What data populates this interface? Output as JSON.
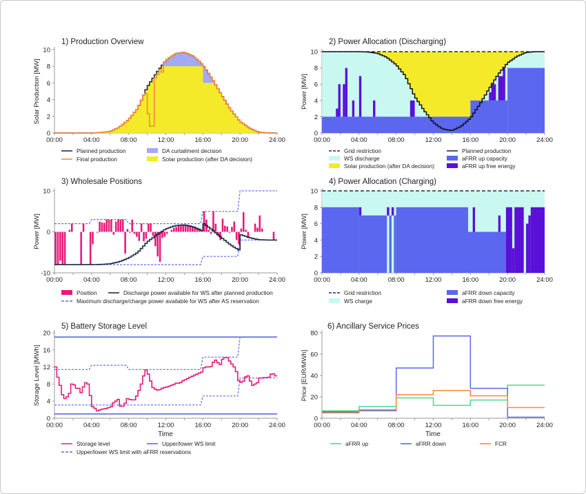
{
  "chart_data": [
    {
      "type": "area",
      "title": "1) Production Overview",
      "ylabel": "Solar Production [MW]",
      "xlabel": "",
      "ylim": [
        0,
        10
      ],
      "yticks": [
        0,
        2,
        4,
        6,
        8,
        10
      ],
      "xticks": [
        "00:00",
        "04:00",
        "08:00",
        "12:00",
        "16:00",
        "20:00",
        "24:00"
      ],
      "grid": false,
      "colors": {
        "planned": "#1f2a48",
        "final": "#f58a3a",
        "curtail": "#a3a9f3",
        "solar": "#f5ea2a"
      },
      "planned_production_hourly": [
        0,
        0,
        0,
        0,
        0,
        0.05,
        0.2,
        0.7,
        1.6,
        3.0,
        5.5,
        7.2,
        8.7,
        9.5,
        9.7,
        9.2,
        8.2,
        6.5,
        4.6,
        2.8,
        1.4,
        0.6,
        0.1,
        0,
        0
      ],
      "da_curtailment_cap": [
        [
          "11:30",
          "16:00",
          8
        ],
        [
          "16:00",
          "17:15",
          6
        ]
      ],
      "final_production_deviations": [
        [
          "09:45",
          4.7
        ],
        [
          "10:00",
          2.3
        ],
        [
          "10:15",
          0.8
        ],
        [
          "10:30",
          0.8
        ],
        [
          "10:45",
          6.6
        ],
        [
          "11:00",
          7.0
        ],
        [
          "11:15",
          7.6
        ],
        [
          "11:30",
          7.3
        ]
      ],
      "legend": [
        {
          "label": "Planned production",
          "kind": "line",
          "color": "#1f2a48"
        },
        {
          "label": "Final production",
          "kind": "line",
          "color": "#f58a3a"
        },
        {
          "label": "DA curtailment decision",
          "kind": "patch",
          "color": "#a3a9f3"
        },
        {
          "label": "Solar production (after DA decision)",
          "kind": "patch",
          "color": "#f5ea2a"
        }
      ]
    },
    {
      "type": "area",
      "title": "2) Power Allocation (Discharging)",
      "ylabel": "Power [MW]",
      "xlabel": "",
      "ylim": [
        0,
        10
      ],
      "yticks": [
        0,
        2,
        4,
        6,
        8,
        10
      ],
      "xticks": [
        "00:00",
        "04:00",
        "08:00",
        "12:00",
        "16:00",
        "20:00",
        "24:00"
      ],
      "grid_restriction": 10,
      "afrr_up_capacity": [
        [
          "00:00",
          "16:00",
          2
        ],
        [
          "16:00",
          "20:00",
          4
        ],
        [
          "20:00",
          "24:00",
          8
        ]
      ],
      "afrr_up_free_energy": [
        [
          "01:30",
          "01:45",
          2,
          3
        ],
        [
          "01:45",
          "02:00",
          2,
          6
        ],
        [
          "02:15",
          "02:30",
          2,
          6
        ],
        [
          "02:30",
          "02:45",
          2,
          8
        ],
        [
          "03:15",
          "03:30",
          2,
          4
        ],
        [
          "04:00",
          "04:15",
          2,
          7
        ],
        [
          "05:30",
          "05:45",
          2,
          4
        ],
        [
          "09:30",
          "10:00",
          2,
          4
        ],
        [
          "18:00",
          "18:15",
          4,
          5
        ],
        [
          "18:15",
          "18:45",
          4,
          6
        ],
        [
          "19:00",
          "19:30",
          4,
          7
        ],
        [
          "19:30",
          "19:45",
          4,
          8
        ]
      ],
      "legend": [
        {
          "label": "Grid restriction",
          "kind": "dash",
          "color": "#1f2a48"
        },
        {
          "label": "WS discharge",
          "kind": "patch",
          "color": "#c9f8f0"
        },
        {
          "label": "Solar production (after DA decision)",
          "kind": "patch",
          "color": "#f5ea2a"
        },
        {
          "label": "Planned production",
          "kind": "line",
          "color": "#1f2a48"
        },
        {
          "label": "aFRR up capacity",
          "kind": "patch",
          "color": "#5a67ee"
        },
        {
          "label": "aFRR up free energy",
          "kind": "patch",
          "color": "#5a10d8"
        }
      ]
    },
    {
      "type": "bar",
      "title": "3) Wholesale Positions",
      "ylabel": "Power [MW]",
      "xlabel": "",
      "ylim": [
        -10,
        10
      ],
      "yticks": [
        -10,
        0,
        10
      ],
      "xticks": [
        "00:00",
        "04:00",
        "08:00",
        "12:00",
        "16:00",
        "20:00",
        "24:00"
      ],
      "resolution_minutes": 15,
      "position": [
        -8,
        -8,
        -7,
        -8,
        -8,
        0,
        0.5,
        2,
        0,
        0,
        0,
        -8,
        2,
        0,
        0,
        -8,
        -3,
        0,
        -0.2,
        2.5,
        2.3,
        2.2,
        3,
        3,
        3,
        -0.7,
        2.5,
        3,
        3,
        3,
        -5.3,
        0.7,
        -0.2,
        3,
        -0.5,
        -1.2,
        -2.2,
        2,
        -2.3,
        -1.7,
        2,
        2,
        -1,
        -3.5,
        -6,
        -7.3,
        -1.5,
        -1.2,
        -0.5,
        0,
        0.5,
        1,
        1.2,
        1.5,
        1.7,
        1.8,
        1.8,
        1.7,
        1.6,
        1.4,
        1.2,
        1,
        0.8,
        0.5,
        5,
        3,
        0.5,
        -0.5,
        5,
        2,
        -1,
        -2,
        3.2,
        1.5,
        1.3,
        -0.2,
        1.2,
        2.5,
        -2,
        -3,
        0.8,
        4.8,
        0.5,
        -1.5,
        0,
        0,
        2,
        1,
        4,
        0.8,
        0,
        0,
        0,
        0,
        -2,
        0
      ],
      "max_ws_discharge": [
        [
          "00:00",
          "03:45",
          2
        ],
        [
          "04:00",
          "07:45",
          3
        ],
        [
          "08:00",
          "15:45",
          2
        ],
        [
          "16:00",
          "19:45",
          5
        ],
        [
          "20:00",
          "24:00",
          10
        ]
      ],
      "max_ws_charge": [
        [
          "00:00",
          "15:45",
          -8
        ],
        [
          "16:00",
          "19:45",
          -6
        ],
        [
          "20:00",
          "24:00",
          -2
        ]
      ],
      "legend": [
        {
          "label": "Position",
          "kind": "patch",
          "color": "#e8197a"
        },
        {
          "label": "Discharge power available for WS after planned production",
          "kind": "line",
          "color": "#1f2a48"
        },
        {
          "label": "Maximum discharge/charge power available for WS after AS reservation",
          "kind": "dash",
          "color": "#5a67ee"
        }
      ]
    },
    {
      "type": "area",
      "title": "4) Power Allocation (Charging)",
      "ylabel": "Power [MW]",
      "xlabel": "",
      "ylim": [
        0,
        10
      ],
      "yticks": [
        0,
        2,
        4,
        6,
        8,
        10
      ],
      "xticks": [
        "00:00",
        "04:00",
        "08:00",
        "12:00",
        "16:00",
        "20:00",
        "24:00"
      ],
      "grid_restriction": 10,
      "afrr_down_capacity": [
        [
          "00:00",
          "04:00",
          8
        ],
        [
          "04:00",
          "07:00",
          7
        ],
        [
          "07:15",
          "07:30",
          7
        ],
        [
          "07:45",
          "08:00",
          7
        ],
        [
          "08:00",
          "15:45",
          8
        ],
        [
          "15:45",
          "19:50",
          5
        ]
      ],
      "afrr_down_free_energy": [
        [
          "04:00",
          "04:15",
          7,
          8
        ],
        [
          "07:00",
          "07:15",
          7,
          8
        ],
        [
          "07:30",
          "07:45",
          7,
          8
        ],
        [
          "16:15",
          "16:30",
          5,
          8
        ],
        [
          "19:00",
          "19:15",
          5,
          7
        ],
        [
          "19:50",
          "20:30",
          0,
          8
        ],
        [
          "20:30",
          "20:45",
          0,
          3
        ],
        [
          "20:45",
          "21:45",
          0,
          8
        ],
        [
          "22:00",
          "22:15",
          0,
          6
        ],
        [
          "22:15",
          "22:30",
          0,
          7
        ],
        [
          "22:30",
          "24:00",
          0,
          8
        ]
      ],
      "legend": [
        {
          "label": "Grid restriction",
          "kind": "dash",
          "color": "#1f2a48"
        },
        {
          "label": "WS charge",
          "kind": "patch",
          "color": "#c9f8f0"
        },
        {
          "label": "aFRR down capacity",
          "kind": "patch",
          "color": "#5a67ee"
        },
        {
          "label": "aFRR down free energy",
          "kind": "patch",
          "color": "#5a10d8"
        }
      ]
    },
    {
      "type": "line",
      "title": "5) Battery Storage Level",
      "ylabel": "Storage Level [MWh]",
      "xlabel": "Time",
      "ylim": [
        0,
        20
      ],
      "yticks": [
        0,
        4,
        8,
        12,
        16,
        20
      ],
      "xticks": [
        "00:00",
        "04:00",
        "08:00",
        "12:00",
        "16:00",
        "20:00",
        "24:00"
      ],
      "resolution_minutes": 15,
      "storage_level": [
        12,
        9.6,
        7.7,
        5.5,
        4.6,
        5,
        5.8,
        8,
        7.8,
        7,
        7,
        6,
        7.3,
        8.3,
        8,
        5.3,
        2.7,
        2.3,
        1.7,
        1.9,
        2.1,
        2.2,
        2.3,
        2.5,
        2.7,
        3.6,
        4,
        4.4,
        2.8,
        2.8,
        3.5,
        4.6,
        4.4,
        4.3,
        4.3,
        5.2,
        6.5,
        8,
        9.9,
        11.3,
        10.3,
        8.7,
        7.2,
        6.8,
        6.6,
        6.7,
        7,
        7.2,
        7.3,
        7.5,
        7.7,
        7.9,
        8.2,
        8.2,
        8.4,
        8.8,
        9,
        9.3,
        9.6,
        9.8,
        10.1,
        10.3,
        10.6,
        10.8,
        11.8,
        12,
        12,
        12.1,
        13.1,
        13.6,
        13,
        12.6,
        13.8,
        14.2,
        14.2,
        13.4,
        12.7,
        12,
        10.9,
        8.8,
        8.4,
        8.7,
        9.7,
        9.9,
        8.7,
        7.7,
        8,
        8.3,
        9.4,
        9.4,
        9.5,
        9.5,
        9.6,
        10.3,
        10.4,
        9.9
      ],
      "ws_limits": [
        19,
        1
      ],
      "afrr_upper_limit": [
        [
          "00:00",
          "03:45",
          11.4
        ],
        [
          "04:00",
          "07:45",
          12.4
        ],
        [
          "08:00",
          "15:45",
          11.4
        ],
        [
          "16:00",
          "19:45",
          14.3
        ],
        [
          "20:00",
          "24:00",
          19
        ]
      ],
      "afrr_lower_limit": [
        [
          "00:00",
          "15:45",
          3.1
        ],
        [
          "16:00",
          "19:45",
          5.2
        ],
        [
          "20:00",
          "24:00",
          9.4
        ]
      ],
      "legend": [
        {
          "label": "Storage level",
          "kind": "line",
          "color": "#e8197a"
        },
        {
          "label": "Upper/lower WS limit",
          "kind": "line",
          "color": "#5a67ee"
        },
        {
          "label": "Upper/lower WS limit with aFRR reservations",
          "kind": "dash",
          "color": "#5a67ee"
        }
      ]
    },
    {
      "type": "line",
      "title": "6) Ancillary Service Prices",
      "ylabel": "Price [EUR/MWh]",
      "xlabel": "Time",
      "ylim": [
        0,
        80
      ],
      "yticks": [
        0,
        20,
        40,
        60,
        80
      ],
      "xticks": [
        "00:00",
        "04:00",
        "08:00",
        "12:00",
        "16:00",
        "20:00",
        "24:00"
      ],
      "blocks": [
        "00:00",
        "04:00",
        "08:00",
        "12:00",
        "16:00",
        "20:00",
        "24:00"
      ],
      "series": [
        {
          "name": "aFRR up",
          "color": "#4fd88e",
          "values": [
            7,
            11,
            19,
            12,
            17,
            31
          ]
        },
        {
          "name": "aFRR down",
          "color": "#5a67ee",
          "values": [
            6,
            7,
            47,
            77,
            28,
            1
          ]
        },
        {
          "name": "FCR",
          "color": "#f58a3a",
          "values": [
            5,
            8,
            22,
            26,
            21,
            10
          ]
        }
      ],
      "legend": [
        {
          "label": "aFRR up",
          "kind": "line",
          "color": "#4fd88e"
        },
        {
          "label": "aFRR down",
          "kind": "line",
          "color": "#5a67ee"
        },
        {
          "label": "FCR",
          "kind": "line",
          "color": "#f58a3a"
        }
      ]
    }
  ]
}
